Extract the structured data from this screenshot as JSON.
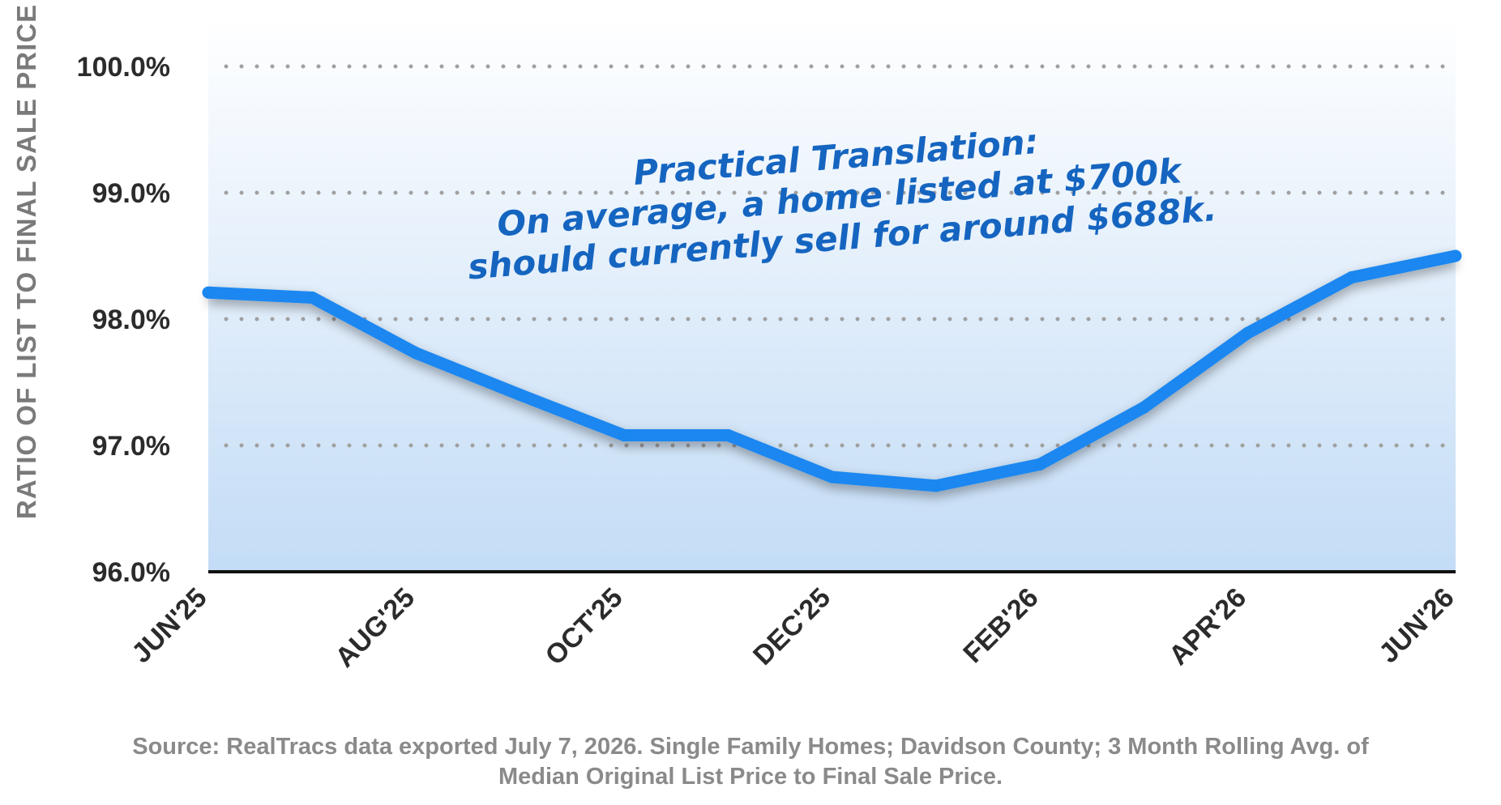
{
  "chart_data": {
    "type": "area",
    "ylabel": "RATIO OF LIST TO FINAL SALE PRICE",
    "xlabel": "",
    "ylim": [
      96.0,
      100.0
    ],
    "yticks": [
      96.0,
      97.0,
      98.0,
      99.0,
      100.0
    ],
    "ytick_labels": [
      "96.0%",
      "97.0%",
      "98.0%",
      "99.0%",
      "100.0%"
    ],
    "grid": "horizontal-dotted",
    "x": [
      "JUN'25",
      "JUL'25",
      "AUG'25",
      "SEP'25",
      "OCT'25",
      "NOV'25",
      "DEC'25",
      "JAN'26",
      "FEB'26",
      "MAR'26",
      "APR'26",
      "MAY'26",
      "JUN'26"
    ],
    "xtick_labels": [
      "JUN'25",
      "AUG'25",
      "OCT'25",
      "DEC'25",
      "FEB'26",
      "APR'26",
      "JUN'26"
    ],
    "series": [
      {
        "values": [
          98.21,
          98.17,
          97.73,
          97.4,
          97.08,
          97.08,
          96.75,
          96.68,
          96.85,
          97.3,
          97.89,
          98.33,
          98.5
        ]
      }
    ],
    "annotations": [
      "Practical Translation:",
      "On average, a home listed at $700k",
      "should currently sell for around $688k."
    ],
    "colors": {
      "line": "#1a87f0",
      "fill_top": "#ffffff",
      "fill_bottom": "#c3dcf6",
      "axis": "#111111",
      "grid": "#a0a0a0"
    }
  },
  "source_lines": [
    "Source: RealTracs data exported July 7, 2026.  Single Family Homes; Davidson County; 3 Month Rolling Avg. of",
    "Median Original List Price to Final Sale Price."
  ]
}
